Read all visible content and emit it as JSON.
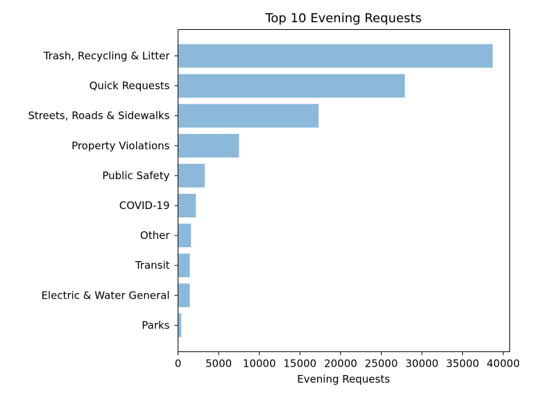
{
  "chart_data": {
    "type": "bar",
    "orientation": "horizontal",
    "title": "Top 10 Evening Requests",
    "xlabel": "Evening Requests",
    "ylabel": "",
    "categories": [
      "Trash, Recycling & Litter",
      "Quick Requests",
      "Streets, Roads & Sidewalks",
      "Property Violations",
      "Public Safety",
      "COVID-19",
      "Other",
      "Transit",
      "Electric & Water General",
      "Parks"
    ],
    "values": [
      38700,
      27900,
      17300,
      7500,
      3300,
      2200,
      1600,
      1450,
      1450,
      400
    ],
    "xlim": [
      0,
      40800
    ],
    "xticks": [
      0,
      5000,
      10000,
      15000,
      20000,
      25000,
      30000,
      35000,
      40000
    ],
    "grid": false,
    "bar_color": "#8cb9d9"
  }
}
